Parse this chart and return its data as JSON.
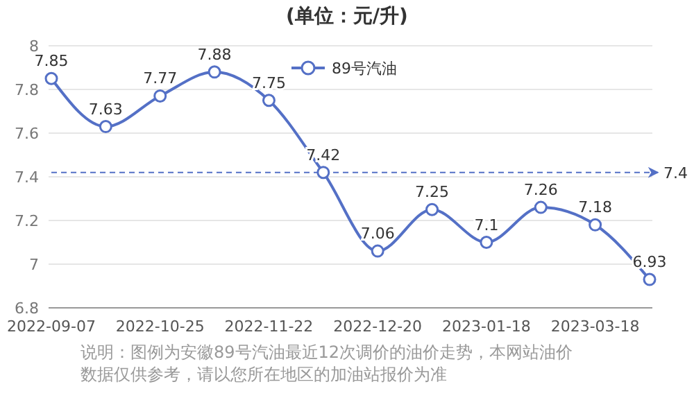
{
  "chart_data": {
    "type": "line",
    "title": "(单位：元/升)",
    "categories": [
      "2022-09-07",
      null,
      "2022-10-25",
      null,
      "2022-11-22",
      null,
      "2022-12-20",
      null,
      "2023-01-18",
      null,
      "2023-03-18",
      null
    ],
    "series": [
      {
        "name": "89号汽油",
        "color": "#5470c6",
        "values": [
          7.85,
          7.63,
          7.77,
          7.88,
          7.75,
          7.42,
          7.06,
          7.25,
          7.1,
          7.26,
          7.18,
          6.93
        ]
      }
    ],
    "ylim": [
      6.8,
      8
    ],
    "yticks": [
      6.8,
      7,
      7.2,
      7.4,
      7.6,
      7.8,
      8
    ],
    "grid": "y",
    "legend": "top",
    "marker": "circle",
    "line_style": "solid",
    "data_labels": true,
    "ref_lines": [
      {
        "axis": "y",
        "value": 7.42,
        "label": "7.4",
        "line_style": "dashed",
        "color": "#5470c6"
      }
    ],
    "annotations": [
      "说明：图例为安徽89号汽油最近12次调价的油价走势，本网站油价数据仅供参考，请以您所在地区的加油站报价为准"
    ]
  }
}
